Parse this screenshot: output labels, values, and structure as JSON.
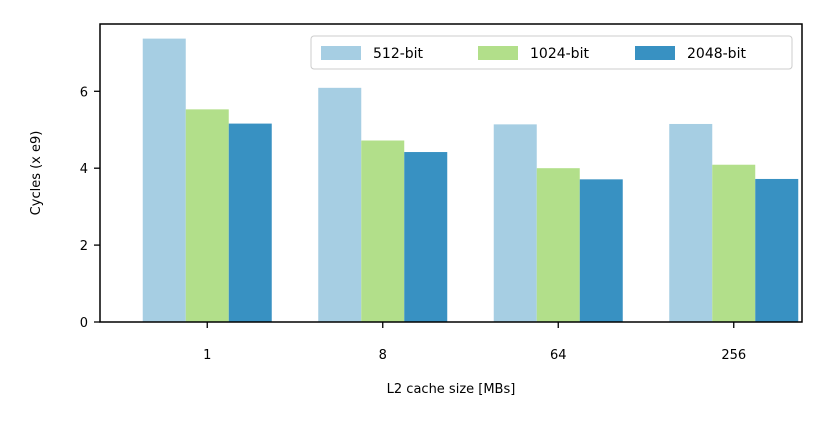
{
  "chart_data": {
    "type": "bar",
    "title": "",
    "xlabel": "L2 cache size [MBs]",
    "ylabel": "Cycles (x e9)",
    "categories": [
      "1",
      "8",
      "64",
      "256"
    ],
    "series": [
      {
        "name": "512-bit",
        "color": "#a6cee3",
        "values": [
          7.37,
          6.09,
          5.14,
          5.15
        ]
      },
      {
        "name": "1024-bit",
        "color": "#b2df8a",
        "values": [
          5.53,
          4.72,
          4.0,
          4.09
        ]
      },
      {
        "name": "2048-bit",
        "color": "#3891c2",
        "values": [
          5.16,
          4.42,
          3.71,
          3.72
        ]
      }
    ],
    "ylim": [
      0,
      7.75
    ],
    "yticks": [
      0,
      2,
      4,
      6
    ],
    "grid": false,
    "legend": {
      "placement": "top-right",
      "columns": 3
    }
  }
}
